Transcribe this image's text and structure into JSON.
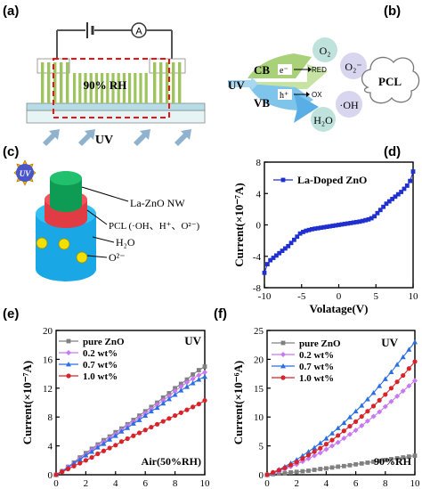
{
  "panels": {
    "a": "(a)",
    "b": "(b)",
    "c": "(c)",
    "d": "(d)",
    "e": "(e)",
    "f": "(f)"
  },
  "panel_a": {
    "meter": "A",
    "humidity": "90% RH",
    "light": "UV"
  },
  "panel_b": {
    "cb": "CB",
    "vb": "VB",
    "uv": "UV",
    "electron": "e⁻",
    "hole": "h⁺",
    "red": "RED",
    "ox": "OX",
    "o2": "O₂",
    "o2_minus": "O₂⁻",
    "h2o": "H₂O",
    "oh": "·OH",
    "pcl": "PCL"
  },
  "panel_c": {
    "uv": "UV",
    "la_zno": "La-ZnO NW",
    "pcl": "PCL (·OH、H⁺、O²⁻)",
    "h2o": "H₂O",
    "o2": "O²⁻"
  },
  "colors": {
    "wire_green": "#9dc45f",
    "blue_curve": "#1f2fd0",
    "cyan": "#12c1ea",
    "red": "#ee3342",
    "green": "#10a558",
    "gray": "#808080",
    "violet": "#c878f0",
    "blue": "#2a6fe0",
    "darkred": "#d8232a"
  },
  "chart_data": [
    {
      "panel": "d",
      "type": "line",
      "xlabel": "Volatage(V)",
      "ylabel": "Current(×10⁻⁷A)",
      "xlim": [
        -10,
        10
      ],
      "ylim": [
        -8,
        8
      ],
      "xticks": [
        -10,
        -5,
        0,
        5,
        10
      ],
      "yticks": [
        -8,
        -4,
        0,
        4,
        8
      ],
      "legend_position": "top-right",
      "series": [
        {
          "name": "La-Doped ZnO",
          "color": "#1f2fd0",
          "x": [
            -10,
            -9.6,
            -9.2,
            -8.8,
            -8.4,
            -8,
            -7.6,
            -7.2,
            -6.8,
            -6.4,
            -6,
            -5.6,
            -5.2,
            -4.8,
            -4.4,
            -4,
            -3.6,
            -3.2,
            -2.8,
            -2.4,
            -2,
            -1.6,
            -1.2,
            -0.8,
            -0.4,
            0,
            0.4,
            0.8,
            1.2,
            1.6,
            2,
            2.4,
            2.8,
            3.2,
            3.6,
            4,
            4.4,
            4.8,
            5.2,
            5.6,
            6,
            6.4,
            6.8,
            7.2,
            7.6,
            8,
            8.4,
            8.8,
            9.2,
            9.6,
            10
          ],
          "y": [
            -6.1,
            -5.0,
            -4.5,
            -4.2,
            -3.9,
            -3.6,
            -3.3,
            -3.0,
            -2.7,
            -2.3,
            -1.9,
            -1.5,
            -1.1,
            -0.9,
            -0.75,
            -0.65,
            -0.55,
            -0.48,
            -0.42,
            -0.36,
            -0.3,
            -0.24,
            -0.18,
            -0.12,
            -0.06,
            0,
            0.06,
            0.12,
            0.18,
            0.24,
            0.3,
            0.36,
            0.42,
            0.5,
            0.6,
            0.7,
            0.85,
            1.1,
            1.5,
            1.9,
            2.3,
            2.7,
            3.0,
            3.3,
            3.6,
            3.9,
            4.2,
            4.6,
            5.0,
            5.6,
            6.8
          ]
        }
      ]
    },
    {
      "panel": "e",
      "type": "line",
      "xlabel": "Volatage(V)",
      "ylabel": "Current(×10⁻⁷A)",
      "xlim": [
        0,
        10
      ],
      "ylim": [
        0,
        20
      ],
      "xticks": [
        0,
        2,
        4,
        6,
        8,
        10
      ],
      "yticks": [
        0,
        4,
        8,
        12,
        16,
        20
      ],
      "annotations": [
        "UV",
        "Air(50%RH)"
      ],
      "legend_position": "top-left",
      "series": [
        {
          "name": "pure ZnO",
          "color": "#808080",
          "marker": "square",
          "x": [
            0,
            0.4,
            0.8,
            1.2,
            1.6,
            2,
            2.4,
            2.8,
            3.2,
            3.6,
            4,
            4.4,
            4.8,
            5.2,
            5.6,
            6,
            6.4,
            6.8,
            7.2,
            7.6,
            8,
            8.4,
            8.8,
            9.2,
            9.6,
            10
          ],
          "y": [
            0,
            0.5,
            1.1,
            1.7,
            2.4,
            3.0,
            3.6,
            4.2,
            4.8,
            5.3,
            5.9,
            6.4,
            7.0,
            7.6,
            8.2,
            8.8,
            9.4,
            10.0,
            10.7,
            11.3,
            12.0,
            12.6,
            13.2,
            13.9,
            14.5,
            15.0
          ]
        },
        {
          "name": "0.2 wt%",
          "color": "#c878f0",
          "marker": "diamond",
          "x": [
            0,
            0.4,
            0.8,
            1.2,
            1.6,
            2,
            2.4,
            2.8,
            3.2,
            3.6,
            4,
            4.4,
            4.8,
            5.2,
            5.6,
            6,
            6.4,
            6.8,
            7.2,
            7.6,
            8,
            8.4,
            8.8,
            9.2,
            9.6,
            10
          ],
          "y": [
            0,
            0.5,
            1.1,
            1.6,
            2.2,
            2.8,
            3.4,
            4.0,
            4.5,
            5.1,
            5.6,
            6.2,
            6.8,
            7.3,
            7.9,
            8.5,
            9.1,
            9.7,
            10.3,
            10.9,
            11.6,
            12.2,
            12.8,
            13.3,
            13.8,
            14.2
          ]
        },
        {
          "name": "0.7 wt%",
          "color": "#2a6fe0",
          "marker": "triangle",
          "x": [
            0,
            0.4,
            0.8,
            1.2,
            1.6,
            2,
            2.4,
            2.8,
            3.2,
            3.6,
            4,
            4.4,
            4.8,
            5.2,
            5.6,
            6,
            6.4,
            6.8,
            7.2,
            7.6,
            8,
            8.4,
            8.8,
            9.2,
            9.6,
            10
          ],
          "y": [
            0,
            0.5,
            1.0,
            1.6,
            2.1,
            2.7,
            3.2,
            3.8,
            4.3,
            4.9,
            5.4,
            6.0,
            6.5,
            7.1,
            7.6,
            8.2,
            8.8,
            9.3,
            9.9,
            10.5,
            11.1,
            11.7,
            12.2,
            12.7,
            13.2,
            13.6
          ]
        },
        {
          "name": "1.0 wt%",
          "color": "#d8232a",
          "marker": "circle",
          "x": [
            0,
            0.4,
            0.8,
            1.2,
            1.6,
            2,
            2.4,
            2.8,
            3.2,
            3.6,
            4,
            4.4,
            4.8,
            5.2,
            5.6,
            6,
            6.4,
            6.8,
            7.2,
            7.6,
            8,
            8.4,
            8.8,
            9.2,
            9.6,
            10
          ],
          "y": [
            0,
            0.4,
            0.8,
            1.2,
            1.6,
            2.0,
            2.4,
            2.9,
            3.3,
            3.7,
            4.1,
            4.6,
            5.0,
            5.4,
            5.8,
            6.2,
            6.6,
            7.0,
            7.4,
            7.8,
            8.2,
            8.6,
            9.0,
            9.4,
            9.8,
            10.3
          ]
        }
      ]
    },
    {
      "panel": "f",
      "type": "line",
      "xlabel": "Volatage(V)",
      "ylabel": "Current(×10⁻⁶A)",
      "xlim": [
        0,
        10
      ],
      "ylim": [
        0,
        25
      ],
      "xticks": [
        0,
        2,
        4,
        6,
        8,
        10
      ],
      "yticks": [
        0,
        5,
        10,
        15,
        20,
        25
      ],
      "annotations": [
        "UV",
        "90%RH"
      ],
      "legend_position": "top-left",
      "series": [
        {
          "name": "pure ZnO",
          "color": "#808080",
          "marker": "square",
          "x": [
            0,
            0.4,
            0.8,
            1.2,
            1.6,
            2,
            2.4,
            2.8,
            3.2,
            3.6,
            4,
            4.4,
            4.8,
            5.2,
            5.6,
            6,
            6.4,
            6.8,
            7.2,
            7.6,
            8,
            8.4,
            8.8,
            9.2,
            9.6,
            10
          ],
          "y": [
            0,
            0.1,
            0.2,
            0.3,
            0.4,
            0.5,
            0.6,
            0.7,
            0.85,
            1.0,
            1.1,
            1.25,
            1.4,
            1.5,
            1.65,
            1.8,
            1.95,
            2.1,
            2.25,
            2.4,
            2.55,
            2.7,
            2.85,
            3.0,
            3.15,
            3.3
          ]
        },
        {
          "name": "0.2 wt%",
          "color": "#c878f0",
          "marker": "diamond",
          "x": [
            0,
            0.4,
            0.8,
            1.2,
            1.6,
            2,
            2.4,
            2.8,
            3.2,
            3.6,
            4,
            4.4,
            4.8,
            5.2,
            5.6,
            6,
            6.4,
            6.8,
            7.2,
            7.6,
            8,
            8.4,
            8.8,
            9.2,
            9.6,
            10
          ],
          "y": [
            0,
            0.3,
            0.6,
            1.0,
            1.4,
            1.8,
            2.3,
            2.8,
            3.3,
            3.8,
            4.4,
            5.0,
            5.6,
            6.3,
            7.0,
            7.7,
            8.5,
            9.3,
            10.1,
            10.9,
            11.8,
            12.7,
            13.6,
            14.5,
            15.4,
            16.3
          ]
        },
        {
          "name": "0.7 wt%",
          "color": "#2a6fe0",
          "marker": "triangle",
          "x": [
            0,
            0.4,
            0.8,
            1.2,
            1.6,
            2,
            2.4,
            2.8,
            3.2,
            3.6,
            4,
            4.4,
            4.8,
            5.2,
            5.6,
            6,
            6.4,
            6.8,
            7.2,
            7.6,
            8,
            8.4,
            8.8,
            9.2,
            9.6,
            10
          ],
          "y": [
            0,
            0.4,
            0.9,
            1.4,
            2.0,
            2.6,
            3.3,
            4.0,
            4.7,
            5.5,
            6.3,
            7.2,
            8.1,
            9.0,
            10.0,
            11.0,
            12.0,
            13.1,
            14.2,
            15.4,
            16.6,
            17.8,
            19.1,
            20.4,
            21.7,
            23.0
          ]
        },
        {
          "name": "1.0 wt%",
          "color": "#d8232a",
          "marker": "circle",
          "x": [
            0,
            0.4,
            0.8,
            1.2,
            1.6,
            2,
            2.4,
            2.8,
            3.2,
            3.6,
            4,
            4.4,
            4.8,
            5.2,
            5.6,
            6,
            6.4,
            6.8,
            7.2,
            7.6,
            8,
            8.4,
            8.8,
            9.2,
            9.6,
            10
          ],
          "y": [
            0,
            0.4,
            0.8,
            1.2,
            1.7,
            2.2,
            2.8,
            3.4,
            4.0,
            4.6,
            5.3,
            6.0,
            6.8,
            7.6,
            8.4,
            9.2,
            10.1,
            11.0,
            11.9,
            12.9,
            13.9,
            15.0,
            16.1,
            17.2,
            18.4,
            19.6
          ]
        }
      ]
    }
  ]
}
